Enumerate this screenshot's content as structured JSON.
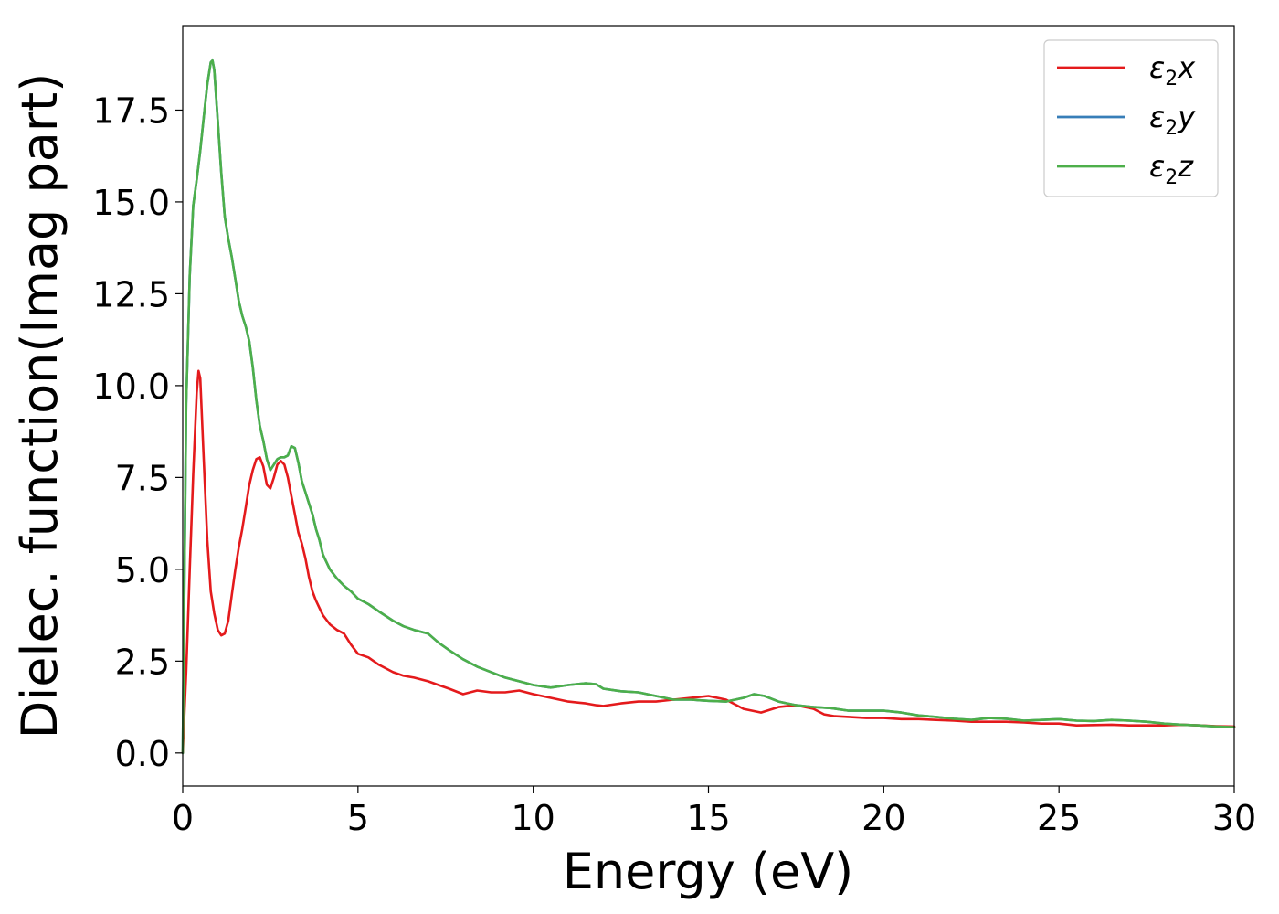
{
  "chart_data": {
    "type": "line",
    "xlabel": "Energy (eV)",
    "ylabel": "Dielec. function(Imag part)",
    "xlim": [
      0,
      30
    ],
    "ylim": [
      -0.9,
      19.8
    ],
    "xticks": [
      0,
      5,
      10,
      15,
      20,
      25,
      30
    ],
    "xtick_labels": [
      "0",
      "5",
      "10",
      "15",
      "20",
      "25",
      "30"
    ],
    "yticks": [
      0.0,
      2.5,
      5.0,
      7.5,
      10.0,
      12.5,
      15.0,
      17.5
    ],
    "ytick_labels": [
      "0.0",
      "2.5",
      "5.0",
      "7.5",
      "10.0",
      "12.5",
      "15.0",
      "17.5"
    ],
    "grid": false,
    "legend_position": "top-right",
    "series": [
      {
        "name": "ε2x",
        "legend_main": "ε",
        "legend_sub": "2",
        "legend_tail": "x",
        "color": "#e41a1c",
        "x": [
          0,
          0.1,
          0.2,
          0.3,
          0.4,
          0.45,
          0.5,
          0.6,
          0.7,
          0.8,
          0.9,
          1.0,
          1.1,
          1.2,
          1.3,
          1.4,
          1.5,
          1.6,
          1.7,
          1.8,
          1.9,
          2.0,
          2.1,
          2.2,
          2.3,
          2.4,
          2.5,
          2.6,
          2.7,
          2.8,
          2.9,
          3.0,
          3.1,
          3.2,
          3.3,
          3.4,
          3.5,
          3.6,
          3.7,
          3.8,
          3.9,
          4.0,
          4.2,
          4.4,
          4.6,
          4.8,
          5.0,
          5.3,
          5.6,
          6.0,
          6.3,
          6.6,
          7.0,
          7.3,
          7.6,
          8.0,
          8.4,
          8.8,
          9.2,
          9.6,
          10.0,
          10.5,
          11.0,
          11.5,
          11.8,
          12.0,
          12.5,
          13.0,
          13.5,
          14.0,
          14.5,
          15.0,
          15.5,
          16.0,
          16.5,
          17.0,
          17.5,
          18.0,
          18.3,
          18.6,
          19.0,
          19.5,
          20.0,
          20.5,
          21.0,
          21.5,
          22.0,
          22.5,
          23.0,
          23.5,
          24.0,
          24.5,
          25.0,
          25.5,
          26.0,
          26.5,
          27.0,
          27.5,
          28.0,
          28.5,
          29.0,
          29.5,
          30.0
        ],
        "y": [
          0,
          2.2,
          5.0,
          7.6,
          9.8,
          10.4,
          10.2,
          8.0,
          5.8,
          4.4,
          3.8,
          3.35,
          3.2,
          3.25,
          3.6,
          4.3,
          5.0,
          5.6,
          6.1,
          6.7,
          7.3,
          7.7,
          8.0,
          8.05,
          7.8,
          7.3,
          7.2,
          7.5,
          7.85,
          7.95,
          7.85,
          7.5,
          7.0,
          6.5,
          6.0,
          5.7,
          5.3,
          4.8,
          4.4,
          4.15,
          3.95,
          3.75,
          3.5,
          3.35,
          3.25,
          2.95,
          2.7,
          2.6,
          2.4,
          2.2,
          2.1,
          2.05,
          1.95,
          1.85,
          1.75,
          1.6,
          1.7,
          1.65,
          1.65,
          1.7,
          1.6,
          1.5,
          1.4,
          1.35,
          1.3,
          1.28,
          1.35,
          1.4,
          1.4,
          1.45,
          1.5,
          1.55,
          1.45,
          1.2,
          1.1,
          1.25,
          1.3,
          1.2,
          1.05,
          1.0,
          0.98,
          0.95,
          0.95,
          0.92,
          0.92,
          0.9,
          0.88,
          0.85,
          0.85,
          0.85,
          0.83,
          0.8,
          0.8,
          0.75,
          0.76,
          0.77,
          0.75,
          0.75,
          0.75,
          0.77,
          0.75,
          0.73,
          0.72
        ]
      },
      {
        "name": "ε2y",
        "legend_main": "ε",
        "legend_sub": "2",
        "legend_tail": "y",
        "color": "#377eb8",
        "x": [
          0,
          0.1,
          0.2,
          0.3,
          0.4,
          0.5,
          0.6,
          0.7,
          0.8,
          0.85,
          0.9,
          1.0,
          1.1,
          1.2,
          1.3,
          1.4,
          1.5,
          1.6,
          1.7,
          1.8,
          1.9,
          2.0,
          2.1,
          2.2,
          2.3,
          2.4,
          2.5,
          2.6,
          2.7,
          2.8,
          2.9,
          3.0,
          3.1,
          3.2,
          3.3,
          3.4,
          3.5,
          3.6,
          3.7,
          3.8,
          3.9,
          4.0,
          4.2,
          4.4,
          4.6,
          4.8,
          5.0,
          5.3,
          5.6,
          6.0,
          6.3,
          6.6,
          7.0,
          7.3,
          7.6,
          8.0,
          8.4,
          8.8,
          9.2,
          9.6,
          10.0,
          10.5,
          11.0,
          11.5,
          11.8,
          12.0,
          12.5,
          13.0,
          13.5,
          14.0,
          14.5,
          15.0,
          15.5,
          16.0,
          16.3,
          16.6,
          17.0,
          17.5,
          18.0,
          18.5,
          19.0,
          19.5,
          20.0,
          20.5,
          21.0,
          21.5,
          22.0,
          22.5,
          23.0,
          23.5,
          24.0,
          24.5,
          25.0,
          25.5,
          26.0,
          26.5,
          27.0,
          27.5,
          28.0,
          28.5,
          29.0,
          29.5,
          30.0
        ],
        "y": [
          0,
          9.5,
          13.0,
          14.9,
          15.6,
          16.4,
          17.3,
          18.2,
          18.8,
          18.85,
          18.6,
          17.2,
          15.8,
          14.6,
          14.0,
          13.5,
          12.9,
          12.3,
          11.9,
          11.6,
          11.2,
          10.5,
          9.6,
          8.9,
          8.5,
          8.0,
          7.7,
          7.85,
          8.0,
          8.05,
          8.05,
          8.1,
          8.35,
          8.3,
          7.9,
          7.4,
          7.1,
          6.8,
          6.5,
          6.1,
          5.8,
          5.4,
          5.0,
          4.75,
          4.55,
          4.4,
          4.2,
          4.05,
          3.85,
          3.6,
          3.45,
          3.35,
          3.25,
          3.0,
          2.8,
          2.55,
          2.35,
          2.2,
          2.05,
          1.95,
          1.85,
          1.78,
          1.85,
          1.9,
          1.87,
          1.75,
          1.68,
          1.65,
          1.55,
          1.45,
          1.45,
          1.42,
          1.4,
          1.5,
          1.6,
          1.55,
          1.4,
          1.3,
          1.25,
          1.22,
          1.15,
          1.15,
          1.15,
          1.1,
          1.02,
          0.98,
          0.93,
          0.9,
          0.95,
          0.93,
          0.88,
          0.9,
          0.92,
          0.88,
          0.87,
          0.9,
          0.88,
          0.85,
          0.8,
          0.77,
          0.75,
          0.72,
          0.7
        ]
      },
      {
        "name": "ε2z",
        "legend_main": "ε",
        "legend_sub": "2",
        "legend_tail": "z",
        "color": "#4daf4a",
        "x": [
          0,
          0.1,
          0.2,
          0.3,
          0.4,
          0.5,
          0.6,
          0.7,
          0.8,
          0.85,
          0.9,
          1.0,
          1.1,
          1.2,
          1.3,
          1.4,
          1.5,
          1.6,
          1.7,
          1.8,
          1.9,
          2.0,
          2.1,
          2.2,
          2.3,
          2.4,
          2.5,
          2.6,
          2.7,
          2.8,
          2.9,
          3.0,
          3.1,
          3.2,
          3.3,
          3.4,
          3.5,
          3.6,
          3.7,
          3.8,
          3.9,
          4.0,
          4.2,
          4.4,
          4.6,
          4.8,
          5.0,
          5.3,
          5.6,
          6.0,
          6.3,
          6.6,
          7.0,
          7.3,
          7.6,
          8.0,
          8.4,
          8.8,
          9.2,
          9.6,
          10.0,
          10.5,
          11.0,
          11.5,
          11.8,
          12.0,
          12.5,
          13.0,
          13.5,
          14.0,
          14.5,
          15.0,
          15.5,
          16.0,
          16.3,
          16.6,
          17.0,
          17.5,
          18.0,
          18.5,
          19.0,
          19.5,
          20.0,
          20.5,
          21.0,
          21.5,
          22.0,
          22.5,
          23.0,
          23.5,
          24.0,
          24.5,
          25.0,
          25.5,
          26.0,
          26.5,
          27.0,
          27.5,
          28.0,
          28.5,
          29.0,
          29.5,
          30.0
        ],
        "y": [
          0,
          9.5,
          13.0,
          14.9,
          15.6,
          16.4,
          17.3,
          18.2,
          18.8,
          18.85,
          18.6,
          17.2,
          15.8,
          14.6,
          14.0,
          13.5,
          12.9,
          12.3,
          11.9,
          11.6,
          11.2,
          10.5,
          9.6,
          8.9,
          8.5,
          8.0,
          7.7,
          7.85,
          8.0,
          8.05,
          8.05,
          8.1,
          8.35,
          8.3,
          7.9,
          7.4,
          7.1,
          6.8,
          6.5,
          6.1,
          5.8,
          5.4,
          5.0,
          4.75,
          4.55,
          4.4,
          4.2,
          4.05,
          3.85,
          3.6,
          3.45,
          3.35,
          3.25,
          3.0,
          2.8,
          2.55,
          2.35,
          2.2,
          2.05,
          1.95,
          1.85,
          1.78,
          1.85,
          1.9,
          1.87,
          1.75,
          1.68,
          1.65,
          1.55,
          1.45,
          1.45,
          1.42,
          1.4,
          1.5,
          1.6,
          1.55,
          1.4,
          1.3,
          1.25,
          1.22,
          1.15,
          1.15,
          1.15,
          1.1,
          1.02,
          0.98,
          0.93,
          0.9,
          0.95,
          0.93,
          0.88,
          0.9,
          0.92,
          0.88,
          0.87,
          0.9,
          0.88,
          0.85,
          0.8,
          0.77,
          0.75,
          0.72,
          0.7
        ]
      }
    ]
  }
}
